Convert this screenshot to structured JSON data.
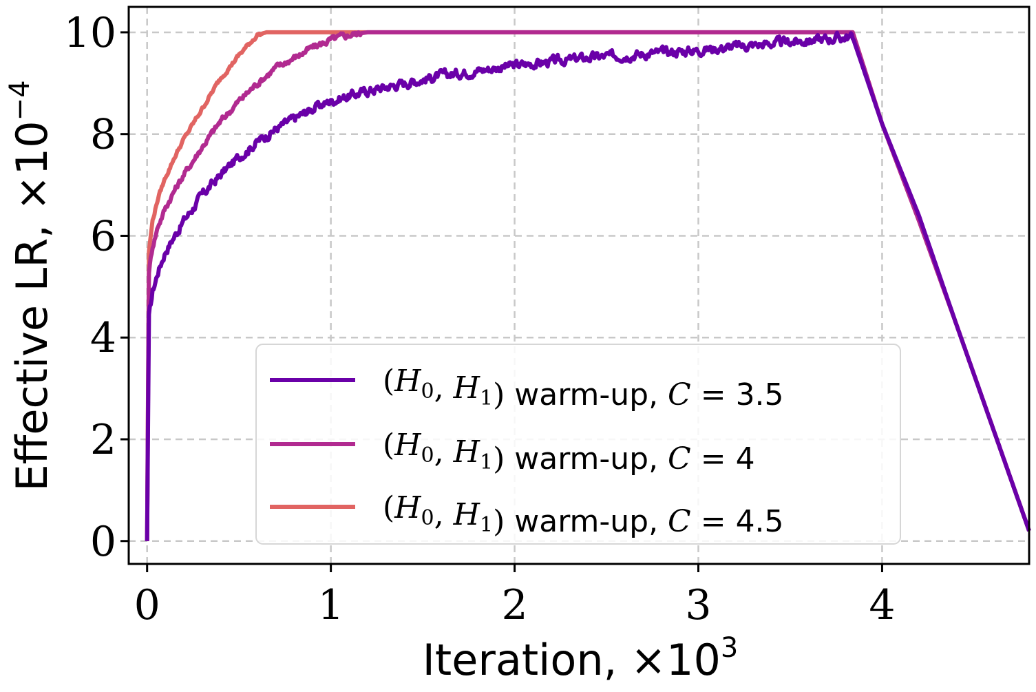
{
  "chart_data": {
    "type": "line",
    "xlabel": "Iteration, ×10",
    "xlabel_exp": "3",
    "ylabel": "Effective LR, ×10",
    "ylabel_exp": "−4",
    "xlim": [
      -0.1,
      4.8
    ],
    "ylim": [
      -0.45,
      10.5
    ],
    "xticks": [
      0,
      1,
      2,
      3,
      4
    ],
    "yticks": [
      0,
      2,
      4,
      6,
      8,
      10
    ],
    "grid": true,
    "legend_position": "lower-center",
    "series": [
      {
        "name": "(H0, H1) warm-up, C = 3.5",
        "label_prefix": "(H",
        "label_text": " warm-up, ",
        "label_c": "C",
        "label_value": "3.5",
        "color": "#6a00a8",
        "noise": 0.07,
        "x": [
          0,
          0.01,
          0.03,
          0.06,
          0.1,
          0.15,
          0.2,
          0.3,
          0.4,
          0.5,
          0.6,
          0.7,
          0.8,
          0.9,
          1.0,
          1.2,
          1.4,
          1.6,
          1.8,
          2.0,
          2.2,
          2.4,
          2.6,
          2.8,
          3.0,
          3.2,
          3.4,
          3.6,
          3.8,
          3.84,
          4.0,
          4.2,
          4.4,
          4.6,
          4.8
        ],
        "y": [
          0,
          4.4,
          4.9,
          5.3,
          5.7,
          6.0,
          6.3,
          6.8,
          7.2,
          7.55,
          7.85,
          8.1,
          8.3,
          8.5,
          8.65,
          8.85,
          9.0,
          9.15,
          9.25,
          9.35,
          9.42,
          9.5,
          9.55,
          9.6,
          9.65,
          9.72,
          9.78,
          9.84,
          9.9,
          9.9,
          8.2,
          6.4,
          4.3,
          2.25,
          0.2
        ]
      },
      {
        "name": "(H0, H1) warm-up, C = 4",
        "label_prefix": "(H",
        "label_text": " warm-up, ",
        "label_c": "C",
        "label_value": "4",
        "color": "#b12a90",
        "noise": 0.05,
        "x": [
          0,
          0.01,
          0.03,
          0.06,
          0.1,
          0.15,
          0.2,
          0.3,
          0.4,
          0.5,
          0.6,
          0.7,
          0.8,
          0.9,
          1.0,
          1.1,
          1.2,
          1.3,
          1.35,
          2.0,
          3.0,
          3.84,
          4.0,
          4.2,
          4.4,
          4.6,
          4.8
        ],
        "y": [
          0,
          5.3,
          5.8,
          6.2,
          6.55,
          6.9,
          7.2,
          7.75,
          8.25,
          8.65,
          9.0,
          9.3,
          9.5,
          9.7,
          9.85,
          9.95,
          10.0,
          10.0,
          10.0,
          10.0,
          10.0,
          10.0,
          8.2,
          6.3,
          4.3,
          2.25,
          0.2
        ]
      },
      {
        "name": "(H0, H1) warm-up, C = 4.5",
        "label_prefix": "(H",
        "label_text": " warm-up, ",
        "label_c": "C",
        "label_value": "4.5",
        "color": "#e16462",
        "noise": 0.03,
        "x": [
          0,
          0.01,
          0.03,
          0.06,
          0.1,
          0.15,
          0.2,
          0.3,
          0.4,
          0.5,
          0.6,
          0.65,
          1.0,
          2.0,
          3.0,
          3.84,
          4.0,
          4.2,
          4.4,
          4.6,
          4.8
        ],
        "y": [
          0,
          5.7,
          6.3,
          6.75,
          7.15,
          7.55,
          7.9,
          8.5,
          9.1,
          9.55,
          9.95,
          10.0,
          10.0,
          10.0,
          10.0,
          10.0,
          8.2,
          6.3,
          4.3,
          2.25,
          0.2
        ]
      }
    ]
  }
}
